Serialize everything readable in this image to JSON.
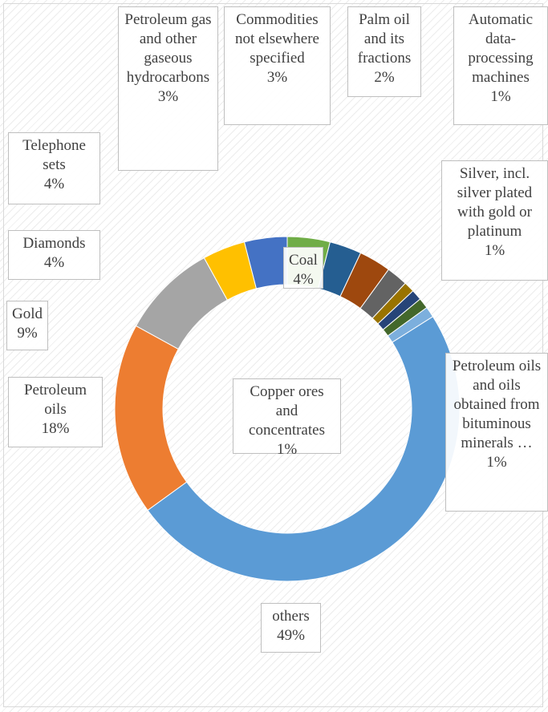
{
  "chart_data": {
    "type": "donut",
    "categories": [
      "Coal",
      "Petroleum gas and other gaseous hydrocarbons",
      "Commodities not elsewhere specified",
      "Palm oil and its fractions",
      "Automatic data-processing machines",
      "Silver, incl. silver plated with gold or platinum",
      "Petroleum oils and oils obtained from bituminous minerals …",
      "Copper ores and concentrates",
      "others",
      "Petroleum oils",
      "Gold",
      "Diamonds",
      "Telephone sets"
    ],
    "values": [
      4,
      3,
      3,
      2,
      1,
      1,
      1,
      1,
      49,
      18,
      9,
      4,
      4
    ],
    "value_labels": [
      "4%",
      "3%",
      "3%",
      "2%",
      "1%",
      "1%",
      "1%",
      "1%",
      "49%",
      "18%",
      "9%",
      "4%",
      "4%"
    ],
    "colors": [
      "#70ad47",
      "#255e91",
      "#9e480e",
      "#636363",
      "#997300",
      "#264478",
      "#43682b",
      "#7cafdd",
      "#5b9bd5",
      "#ed7d31",
      "#a5a5a5",
      "#ffc000",
      "#4472c4"
    ]
  }
}
